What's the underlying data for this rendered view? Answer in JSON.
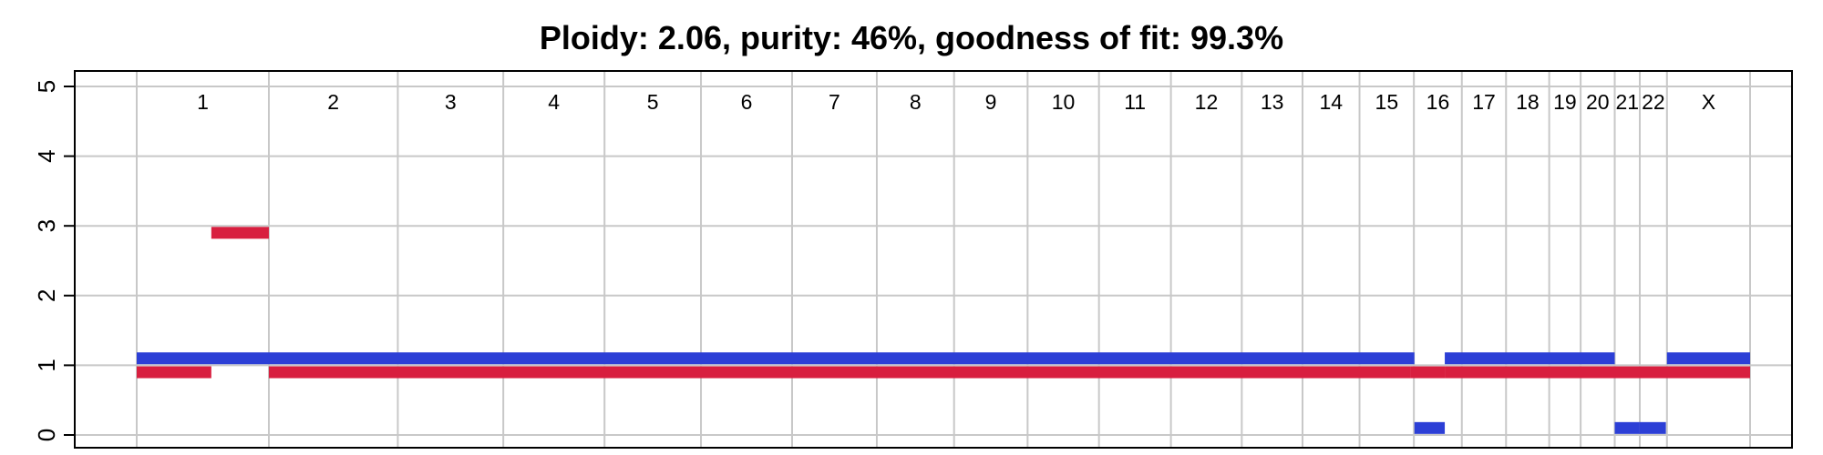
{
  "chart_data": {
    "type": "copy-number-segments",
    "title": "Ploidy: 2.06, purity: 46%, goodness of fit: 99.3%",
    "xlabel": "",
    "ylabel": "",
    "ylim": [
      0,
      5
    ],
    "yticks": [
      0,
      1,
      2,
      3,
      4,
      5
    ],
    "grid": true,
    "chromosomes": [
      {
        "label": "1",
        "start": 0,
        "end": 248
      },
      {
        "label": "2",
        "start": 248,
        "end": 490
      },
      {
        "label": "3",
        "start": 490,
        "end": 688
      },
      {
        "label": "4",
        "start": 688,
        "end": 878
      },
      {
        "label": "5",
        "start": 878,
        "end": 1059
      },
      {
        "label": "6",
        "start": 1059,
        "end": 1230
      },
      {
        "label": "7",
        "start": 1230,
        "end": 1389
      },
      {
        "label": "8",
        "start": 1389,
        "end": 1534
      },
      {
        "label": "9",
        "start": 1534,
        "end": 1672
      },
      {
        "label": "10",
        "start": 1672,
        "end": 1806
      },
      {
        "label": "11",
        "start": 1806,
        "end": 1941
      },
      {
        "label": "12",
        "start": 1941,
        "end": 2074
      },
      {
        "label": "13",
        "start": 2074,
        "end": 2188
      },
      {
        "label": "14",
        "start": 2188,
        "end": 2295
      },
      {
        "label": "15",
        "start": 2295,
        "end": 2397
      },
      {
        "label": "16",
        "start": 2397,
        "end": 2487
      },
      {
        "label": "17",
        "start": 2487,
        "end": 2570
      },
      {
        "label": "18",
        "start": 2570,
        "end": 2651
      },
      {
        "label": "19",
        "start": 2651,
        "end": 2710
      },
      {
        "label": "20",
        "start": 2710,
        "end": 2774
      },
      {
        "label": "21",
        "start": 2774,
        "end": 2821
      },
      {
        "label": "22",
        "start": 2821,
        "end": 2872
      },
      {
        "label": "X",
        "start": 2872,
        "end": 3028
      }
    ],
    "series": [
      {
        "color": "#2c3fd6",
        "segments": [
          {
            "start": 0,
            "end": 2398,
            "value": 1.1
          },
          {
            "start": 2398,
            "end": 2455,
            "value": 0.1
          },
          {
            "start": 2455,
            "end": 2774,
            "value": 1.1
          },
          {
            "start": 2774,
            "end": 2820,
            "value": 0.1
          },
          {
            "start": 2820,
            "end": 2870,
            "value": 0.1
          },
          {
            "start": 2872,
            "end": 3028,
            "value": 1.1
          }
        ]
      },
      {
        "color": "#d81f3f",
        "segments": [
          {
            "start": 0,
            "end": 140,
            "value": 0.9
          },
          {
            "start": 140,
            "end": 248,
            "value": 2.9
          },
          {
            "start": 248,
            "end": 2390,
            "value": 0.9
          },
          {
            "start": 2390,
            "end": 2455,
            "value": 0.9
          },
          {
            "start": 2455,
            "end": 3028,
            "value": 0.9
          }
        ]
      }
    ]
  }
}
